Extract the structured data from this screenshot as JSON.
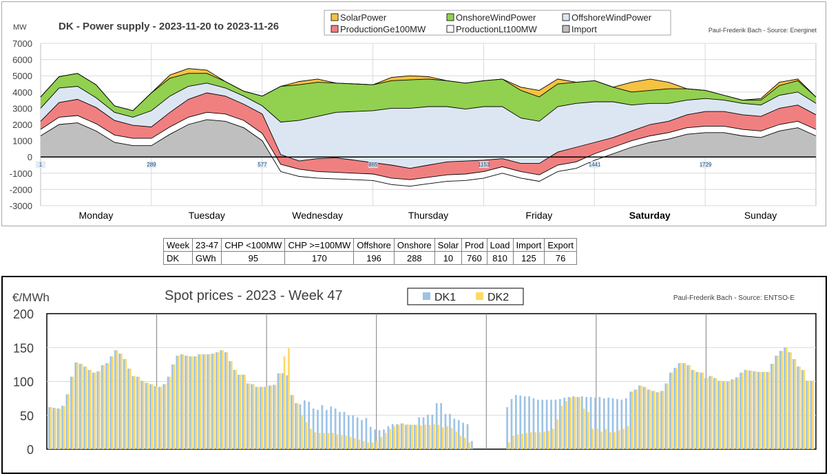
{
  "chart_data": [
    {
      "type": "area",
      "title": "DK - Power supply  - 2023-11-20 to 2023-11-26",
      "ylabel": "MW",
      "source": "Paul-Frederik Bach - Source: Energinet",
      "ylim": [
        -3000,
        7000
      ],
      "yticks": [
        "7000",
        "6000",
        "5000",
        "4000",
        "3000",
        "2000",
        "1000",
        "0",
        "-1000",
        "-2000",
        "-3000"
      ],
      "xticks": [
        "1",
        "289",
        "577",
        "865",
        "1153",
        "1441",
        "1729"
      ],
      "days": [
        "Monday",
        "Tuesday",
        "Wednesday",
        "Thursday",
        "Friday",
        "Saturday",
        "Sunday"
      ],
      "grid": true,
      "legend_position": "top",
      "x": [
        1,
        49,
        97,
        145,
        193,
        241,
        289,
        337,
        385,
        433,
        481,
        529,
        577,
        625,
        673,
        721,
        769,
        817,
        865,
        913,
        961,
        1009,
        1057,
        1105,
        1153,
        1201,
        1249,
        1297,
        1345,
        1393,
        1441,
        1489,
        1537,
        1585,
        1633,
        1681,
        1729,
        1777,
        1825,
        1873,
        1921,
        1969,
        2016
      ],
      "series": [
        {
          "name": "Import",
          "color": "#bfbfbf",
          "values": [
            1300,
            2000,
            2100,
            1600,
            900,
            700,
            700,
            1400,
            2000,
            2300,
            2200,
            1800,
            1000,
            -900,
            -1200,
            -1300,
            -1350,
            -1400,
            -1450,
            -1700,
            -1800,
            -1650,
            -1500,
            -1450,
            -1300,
            -1000,
            -1300,
            -1500,
            -900,
            -700,
            -200,
            200,
            600,
            900,
            1100,
            1400,
            1500,
            1500,
            1300,
            1200,
            1600,
            1800,
            1300
          ]
        },
        {
          "name": "ProductionLt100MW",
          "color": "#ffffff",
          "values": [
            400,
            450,
            450,
            450,
            450,
            450,
            450,
            450,
            450,
            450,
            450,
            450,
            450,
            450,
            450,
            400,
            400,
            400,
            400,
            400,
            400,
            400,
            400,
            400,
            400,
            400,
            400,
            400,
            400,
            400,
            400,
            400,
            400,
            400,
            400,
            400,
            400,
            400,
            400,
            400,
            400,
            400,
            400
          ]
        },
        {
          "name": "ProductionGe100MW",
          "color": "#f08080",
          "values": [
            500,
            900,
            1000,
            1000,
            900,
            800,
            700,
            900,
            1100,
            1200,
            1100,
            1000,
            1200,
            600,
            500,
            800,
            900,
            800,
            700,
            800,
            700,
            750,
            800,
            800,
            700,
            500,
            500,
            700,
            800,
            900,
            700,
            600,
            600,
            700,
            700,
            800,
            900,
            900,
            900,
            900,
            1000,
            1000,
            900
          ]
        },
        {
          "name": "OffshoreWindPower",
          "color": "#dce6f2",
          "values": [
            800,
            900,
            800,
            600,
            500,
            500,
            1000,
            1000,
            800,
            600,
            500,
            500,
            500,
            2000,
            2500,
            2600,
            2800,
            3000,
            3200,
            3500,
            3700,
            3600,
            3400,
            3200,
            3300,
            3200,
            2800,
            2600,
            2800,
            2700,
            2500,
            2200,
            1600,
            1300,
            1100,
            900,
            800,
            700,
            700,
            700,
            800,
            800,
            700
          ]
        },
        {
          "name": "OnshoreWindPower",
          "color": "#92d050",
          "values": [
            700,
            700,
            800,
            800,
            400,
            400,
            1100,
            1100,
            800,
            600,
            400,
            300,
            600,
            2200,
            2200,
            2100,
            1800,
            1700,
            1600,
            1700,
            1750,
            1700,
            1600,
            1600,
            1600,
            1700,
            1700,
            1500,
            1400,
            1300,
            1300,
            900,
            800,
            800,
            900,
            700,
            500,
            300,
            200,
            300,
            600,
            700,
            400
          ]
        },
        {
          "name": "SolarPower",
          "color": "#f5c242",
          "values": [
            0,
            0,
            0,
            0,
            0,
            0,
            0,
            200,
            300,
            200,
            0,
            0,
            0,
            0,
            200,
            200,
            0,
            0,
            0,
            200,
            250,
            150,
            0,
            0,
            0,
            0,
            200,
            400,
            300,
            0,
            0,
            0,
            600,
            700,
            400,
            0,
            0,
            0,
            0,
            100,
            200,
            100,
            0
          ]
        }
      ],
      "legend": [
        {
          "label": "SolarPower",
          "color": "#f5c242"
        },
        {
          "label": "OnshoreWindPower",
          "color": "#92d050"
        },
        {
          "label": "OffshoreWindPower",
          "color": "#dce6f2"
        },
        {
          "label": "ProductionGe100MW",
          "color": "#f08080"
        },
        {
          "label": "ProductionLt100MW",
          "color": "#ffffff"
        },
        {
          "label": "Import",
          "color": "#bfbfbf"
        }
      ]
    },
    {
      "type": "bar",
      "title": "Spot prices - 2023 - Week 47",
      "ylabel": "€/MWh",
      "source": "Paul-Frederik Bach - Source: ENTSO-E",
      "ylim": [
        0,
        200
      ],
      "yticks": [
        "200",
        "150",
        "100",
        "50",
        "0"
      ],
      "grid": true,
      "legend_position": "top",
      "series": [
        {
          "name": "DK1",
          "color": "#9dc3e6",
          "values": [
            62,
            61,
            60,
            64,
            81,
            107,
            128,
            126,
            122,
            117,
            113,
            115,
            124,
            127,
            137,
            146,
            141,
            133,
            119,
            108,
            107,
            101,
            98,
            96,
            93,
            92,
            96,
            107,
            125,
            138,
            140,
            138,
            137,
            137,
            140,
            140,
            140,
            141,
            143,
            146,
            143,
            130,
            117,
            110,
            110,
            97,
            96,
            92,
            92,
            92,
            94,
            95,
            112,
            112,
            109,
            80,
            68,
            66,
            72,
            70,
            60,
            58,
            65,
            58,
            63,
            60,
            55,
            55,
            50,
            50,
            47,
            43,
            46,
            33,
            29,
            28,
            29,
            34,
            37,
            37,
            38,
            36,
            36,
            36,
            47,
            47,
            51,
            51,
            68,
            68,
            52,
            52,
            45,
            43,
            39,
            37,
            12,
            0,
            0,
            0,
            0,
            0,
            0,
            0,
            62,
            74,
            80,
            79,
            78,
            78,
            75,
            73,
            73,
            73,
            73,
            73,
            74,
            76,
            77,
            78,
            77,
            78,
            77,
            77,
            76,
            77,
            75,
            76,
            75,
            74,
            73,
            75,
            85,
            88,
            94,
            92,
            88,
            86,
            84,
            86,
            97,
            113,
            120,
            127,
            127,
            124,
            117,
            114,
            113,
            105,
            108,
            105,
            101,
            100,
            100,
            103,
            106,
            113,
            117,
            116,
            115,
            114,
            114,
            114,
            126,
            138,
            145,
            150,
            143,
            133,
            122,
            117,
            101,
            101
          ]
        },
        {
          "name": "DK2",
          "color": "#ffd966",
          "values": [
            62,
            61,
            60,
            64,
            81,
            107,
            128,
            126,
            122,
            117,
            113,
            115,
            124,
            127,
            137,
            146,
            141,
            133,
            119,
            108,
            107,
            101,
            98,
            96,
            93,
            92,
            96,
            107,
            125,
            138,
            140,
            138,
            137,
            137,
            140,
            140,
            140,
            141,
            143,
            146,
            143,
            130,
            117,
            110,
            110,
            97,
            96,
            92,
            92,
            92,
            94,
            95,
            112,
            137,
            149,
            80,
            68,
            50,
            40,
            30,
            25,
            24,
            24,
            24,
            24,
            22,
            21,
            20,
            18,
            16,
            14,
            12,
            10,
            10,
            12,
            18,
            24,
            30,
            34,
            36,
            38,
            37,
            36,
            36,
            35,
            36,
            36,
            37,
            36,
            32,
            34,
            31,
            26,
            20,
            17,
            10,
            0,
            0,
            0,
            0,
            0,
            0,
            0,
            0,
            10,
            20,
            22,
            23,
            24,
            25,
            25,
            25,
            26,
            27,
            30,
            44,
            64,
            71,
            76,
            77,
            77,
            60,
            55,
            30,
            30,
            26,
            30,
            25,
            25,
            28,
            30,
            34,
            85,
            88,
            94,
            92,
            88,
            86,
            84,
            86,
            97,
            113,
            120,
            127,
            127,
            124,
            117,
            114,
            113,
            105,
            108,
            105,
            101,
            100,
            100,
            103,
            106,
            113,
            117,
            116,
            115,
            114,
            114,
            114,
            126,
            138,
            145,
            150,
            143,
            133,
            122,
            117,
            101,
            101
          ]
        }
      ],
      "legend": [
        {
          "label": "DK1",
          "color": "#9dc3e6"
        },
        {
          "label": "DK2",
          "color": "#ffd966"
        }
      ]
    }
  ],
  "summary_table": {
    "rows": [
      [
        "Week",
        "23-47",
        "CHP <100MW",
        "CHP >=100MW",
        "Offshore",
        "Onshore",
        "Solar",
        "Prod",
        "Load",
        "Import",
        "Export"
      ],
      [
        "DK",
        "GWh",
        "95",
        "170",
        "196",
        "288",
        "10",
        "760",
        "810",
        "125",
        "76"
      ]
    ]
  }
}
